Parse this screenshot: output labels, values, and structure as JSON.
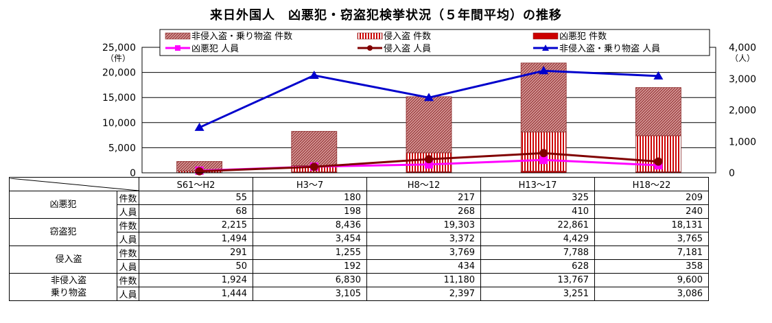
{
  "title": "来日外国人　凶悪犯・窃盗犯検挙状況（５年間平均）の推移",
  "chart_data": {
    "type": "bar",
    "categories": [
      "S61～H2",
      "H3～7",
      "H8～12",
      "H13～17",
      "H18～22"
    ],
    "stack_series": [
      {
        "name": "凶悪犯  件数",
        "values": [
          55,
          180,
          217,
          325,
          209
        ],
        "color": "#cc0000"
      },
      {
        "name": "侵入盗  件数",
        "values": [
          291,
          1255,
          3769,
          7788,
          7181
        ],
        "color": "#cc0000"
      },
      {
        "name": "非侵入盗・乗り物盗  件数",
        "values": [
          1924,
          6830,
          11180,
          13767,
          9600
        ],
        "color": "#d28c8c"
      }
    ],
    "line_series": [
      {
        "name": "凶悪犯  人員",
        "values": [
          68,
          198,
          268,
          410,
          240
        ],
        "color": "#ff00ff",
        "marker": "square"
      },
      {
        "name": "侵入盗  人員",
        "values": [
          50,
          192,
          434,
          628,
          358
        ],
        "color": "#800000",
        "marker": "circle"
      },
      {
        "name": "非侵入盗・乗り物盗  人員",
        "values": [
          1444,
          3105,
          2397,
          3251,
          3086
        ],
        "color": "#0000cc",
        "marker": "triangle"
      }
    ],
    "y_left": {
      "ticks": [
        "25,000",
        "20,000",
        "15,000",
        "10,000",
        "5,000",
        "0"
      ],
      "unit": "（件）",
      "min": 0,
      "max": 25000
    },
    "y_right": {
      "ticks": [
        "4,000",
        "3,000",
        "2,000",
        "1,000",
        "0"
      ],
      "unit": "（人）",
      "min": 0,
      "max": 4000
    },
    "grid": true,
    "legend_position": "top"
  },
  "table": {
    "header": [
      "S61～H2",
      "H3～7",
      "H8～12",
      "H13～17",
      "H18～22"
    ],
    "groups": [
      {
        "label": "凶悪犯",
        "rows": [
          {
            "label": "件数",
            "values": [
              "55",
              "180",
              "217",
              "325",
              "209"
            ]
          },
          {
            "label": "人員",
            "values": [
              "68",
              "198",
              "268",
              "410",
              "240"
            ]
          }
        ]
      },
      {
        "label": "窃盗犯",
        "rows": [
          {
            "label": "件数",
            "values": [
              "2,215",
              "8,436",
              "19,303",
              "22,861",
              "18,131"
            ]
          },
          {
            "label": "人員",
            "values": [
              "1,494",
              "3,454",
              "3,372",
              "4,429",
              "3,765"
            ]
          }
        ]
      },
      {
        "label": "侵入盗",
        "rows": [
          {
            "label": "件数",
            "values": [
              "291",
              "1,255",
              "3,769",
              "7,788",
              "7,181"
            ]
          },
          {
            "label": "人員",
            "values": [
              "50",
              "192",
              "434",
              "628",
              "358"
            ]
          }
        ]
      },
      {
        "label": "非侵入盗\n乗り物盗",
        "rows": [
          {
            "label": "件数",
            "values": [
              "1,924",
              "6,830",
              "11,180",
              "13,767",
              "9,600"
            ]
          },
          {
            "label": "人員",
            "values": [
              "1,444",
              "3,105",
              "2,397",
              "3,251",
              "3,086"
            ]
          }
        ]
      }
    ]
  }
}
